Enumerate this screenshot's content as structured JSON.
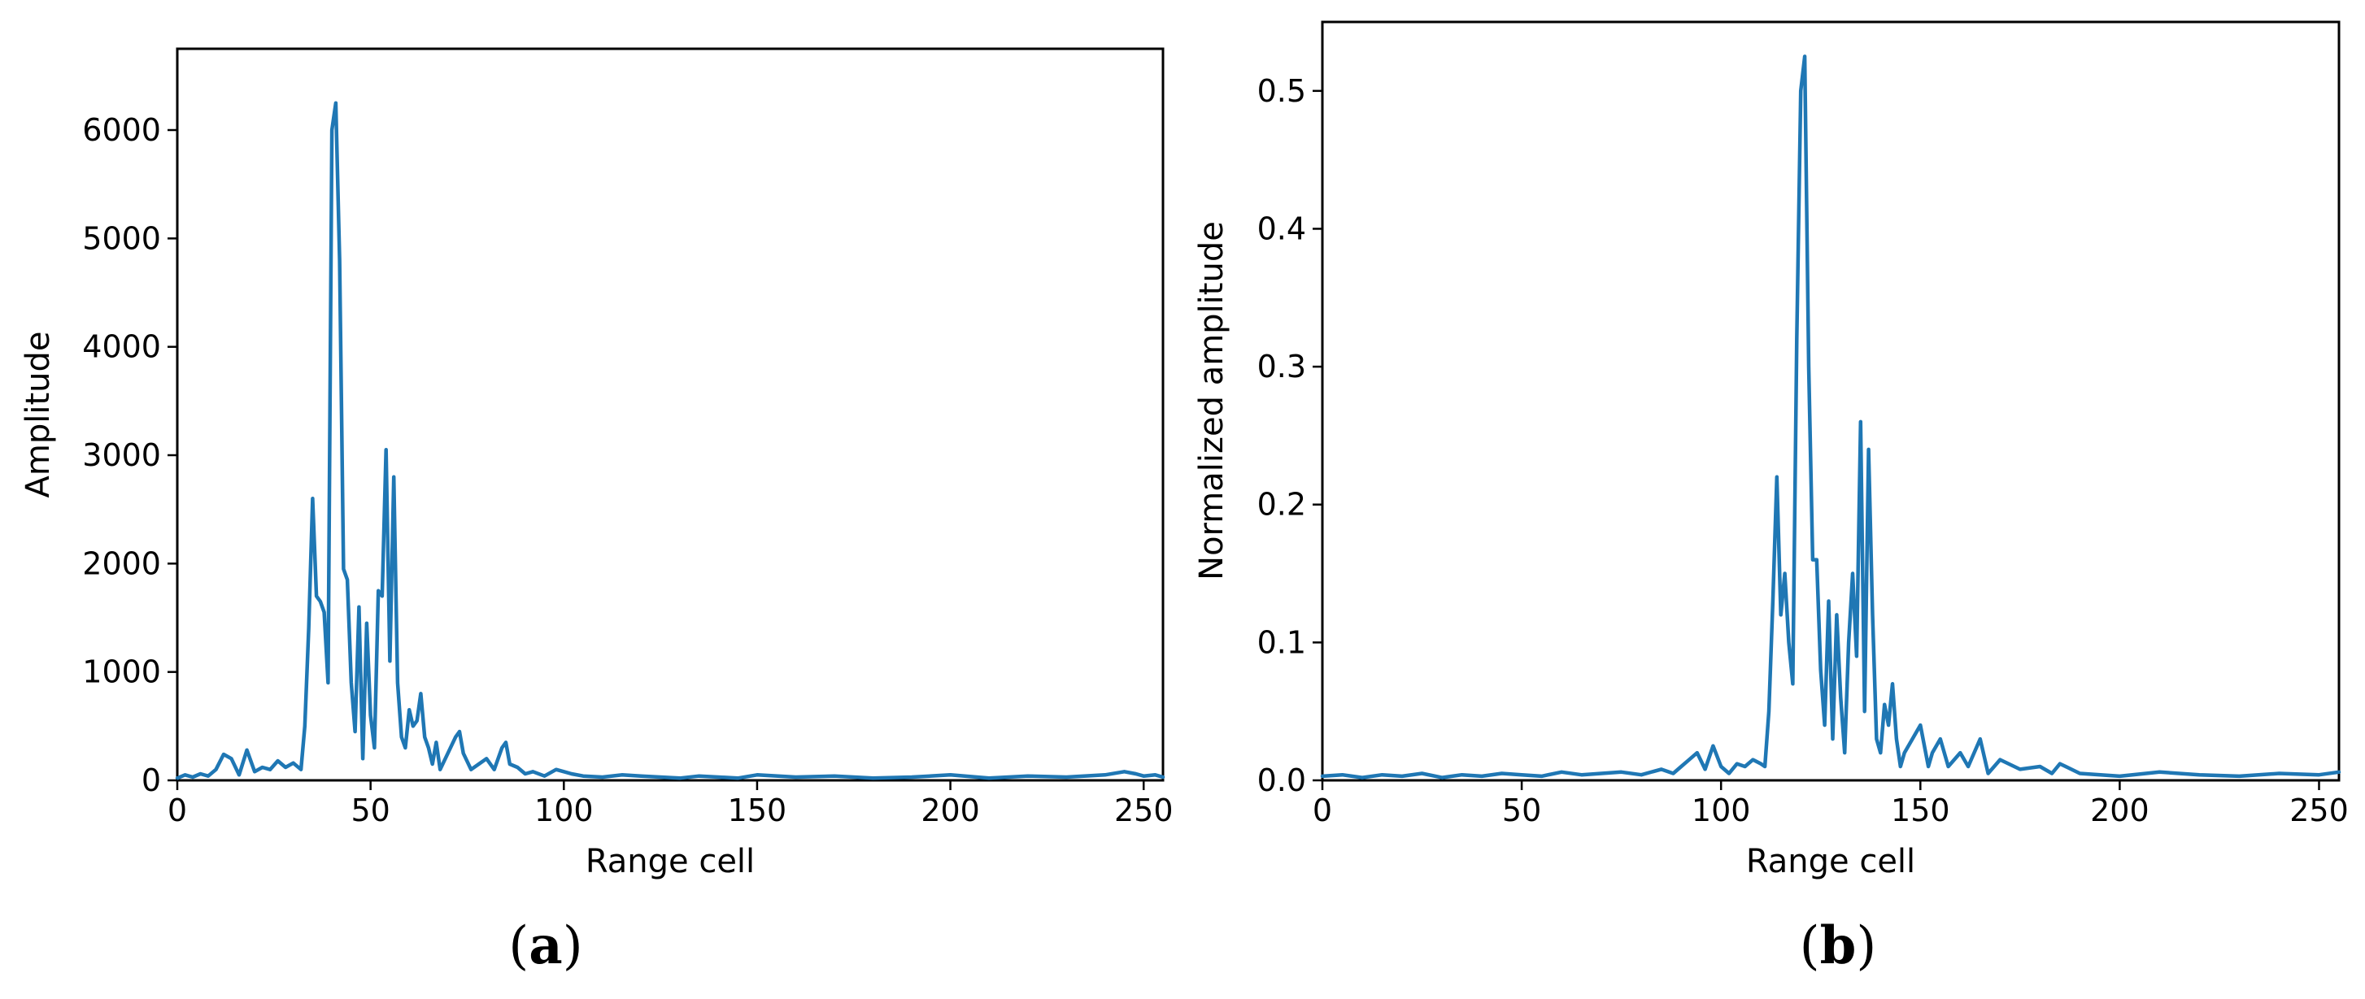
{
  "chart_data": [
    {
      "panel_label": "a",
      "type": "line",
      "xlabel": "Range cell",
      "ylabel": "Amplitude",
      "xlim": [
        0,
        255
      ],
      "ylim": [
        0,
        6750
      ],
      "xticks": [
        0,
        50,
        100,
        150,
        200,
        250
      ],
      "yticks": [
        0,
        1000,
        2000,
        3000,
        4000,
        5000,
        6000
      ],
      "grid": false,
      "line_color": "#1f77b4",
      "series": [
        {
          "x": [
            0,
            2,
            4,
            6,
            8,
            10,
            12,
            14,
            16,
            18,
            20,
            22,
            24,
            26,
            28,
            30,
            32,
            33,
            34,
            35,
            36,
            37,
            38,
            39,
            40,
            41,
            42,
            43,
            44,
            45,
            46,
            47,
            48,
            49,
            50,
            51,
            52,
            53,
            54,
            55,
            56,
            57,
            58,
            59,
            60,
            61,
            62,
            63,
            64,
            65,
            66,
            67,
            68,
            70,
            72,
            73,
            74,
            76,
            78,
            80,
            82,
            84,
            85,
            86,
            88,
            90,
            92,
            95,
            98,
            100,
            102,
            105,
            110,
            115,
            120,
            125,
            130,
            135,
            140,
            145,
            150,
            160,
            170,
            180,
            190,
            200,
            210,
            220,
            230,
            240,
            245,
            248,
            250,
            253,
            255
          ],
          "y": [
            20,
            50,
            30,
            60,
            40,
            100,
            240,
            200,
            50,
            280,
            80,
            120,
            100,
            180,
            120,
            160,
            100,
            500,
            1400,
            2600,
            1700,
            1650,
            1550,
            900,
            6000,
            6250,
            4800,
            1950,
            1850,
            900,
            450,
            1600,
            200,
            1450,
            600,
            300,
            1750,
            1700,
            3050,
            1100,
            2800,
            900,
            400,
            300,
            650,
            500,
            550,
            800,
            400,
            300,
            150,
            350,
            100,
            250,
            400,
            450,
            250,
            100,
            150,
            200,
            100,
            300,
            350,
            150,
            120,
            60,
            80,
            40,
            100,
            80,
            60,
            40,
            30,
            50,
            40,
            30,
            20,
            40,
            30,
            20,
            50,
            30,
            40,
            20,
            30,
            50,
            20,
            40,
            30,
            50,
            80,
            60,
            40,
            50,
            30
          ]
        }
      ]
    },
    {
      "panel_label": "b",
      "type": "line",
      "xlabel": "Range cell",
      "ylabel": "Normalized amplitude",
      "xlim": [
        0,
        255
      ],
      "ylim": [
        0,
        0.55
      ],
      "xticks": [
        0,
        50,
        100,
        150,
        200,
        250
      ],
      "yticks": [
        0.0,
        0.1,
        0.2,
        0.3,
        0.4,
        0.5
      ],
      "ytick_labels": [
        "0.0",
        "0.1",
        "0.2",
        "0.3",
        "0.4",
        "0.5"
      ],
      "grid": false,
      "line_color": "#1f77b4",
      "series": [
        {
          "x": [
            0,
            5,
            10,
            15,
            20,
            25,
            30,
            35,
            40,
            45,
            50,
            55,
            60,
            65,
            70,
            75,
            80,
            85,
            88,
            90,
            92,
            94,
            96,
            98,
            100,
            102,
            104,
            106,
            108,
            110,
            111,
            112,
            113,
            114,
            115,
            116,
            117,
            118,
            119,
            120,
            121,
            122,
            123,
            124,
            125,
            126,
            127,
            128,
            129,
            130,
            131,
            132,
            133,
            134,
            135,
            136,
            137,
            138,
            139,
            140,
            141,
            142,
            143,
            144,
            145,
            146,
            148,
            150,
            152,
            153,
            155,
            157,
            160,
            162,
            165,
            167,
            170,
            175,
            180,
            183,
            185,
            190,
            200,
            210,
            220,
            230,
            240,
            250,
            255
          ],
          "y": [
            0.003,
            0.004,
            0.002,
            0.004,
            0.003,
            0.005,
            0.002,
            0.004,
            0.003,
            0.005,
            0.004,
            0.003,
            0.006,
            0.004,
            0.005,
            0.006,
            0.004,
            0.008,
            0.005,
            0.01,
            0.015,
            0.02,
            0.008,
            0.025,
            0.01,
            0.005,
            0.012,
            0.01,
            0.015,
            0.012,
            0.01,
            0.05,
            0.13,
            0.22,
            0.12,
            0.15,
            0.1,
            0.07,
            0.32,
            0.5,
            0.525,
            0.3,
            0.16,
            0.16,
            0.08,
            0.04,
            0.13,
            0.03,
            0.12,
            0.06,
            0.02,
            0.1,
            0.15,
            0.09,
            0.26,
            0.05,
            0.24,
            0.12,
            0.03,
            0.02,
            0.055,
            0.04,
            0.07,
            0.03,
            0.01,
            0.02,
            0.03,
            0.04,
            0.01,
            0.02,
            0.03,
            0.01,
            0.02,
            0.01,
            0.03,
            0.005,
            0.015,
            0.008,
            0.01,
            0.005,
            0.012,
            0.005,
            0.003,
            0.006,
            0.004,
            0.003,
            0.005,
            0.004,
            0.006
          ]
        }
      ]
    }
  ]
}
